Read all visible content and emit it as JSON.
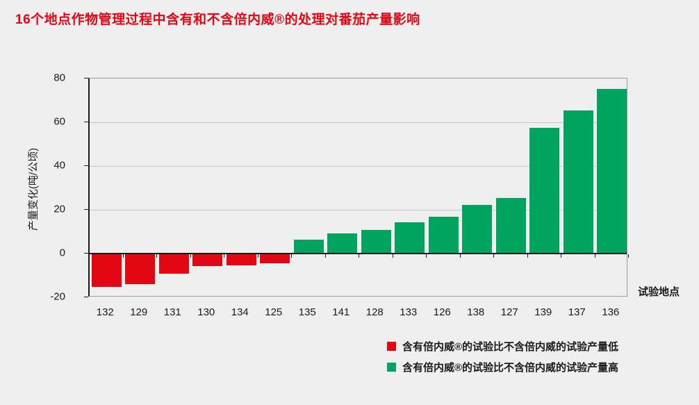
{
  "title": "16个地点作物管理过程中含有和不含倍内威®的处理对番茄产量影响",
  "colors": {
    "title": "#e30613",
    "negative_bar": "#e30613",
    "positive_bar": "#00a45e",
    "axis": "#1a1a1a",
    "gridline": "#c9c9c9",
    "plot_border": "#9a9a9a",
    "background": "#efefef"
  },
  "chart_data": {
    "type": "bar",
    "title": "16个地点作物管理过程中含有和不含倍内威®的处理对番茄产量影响",
    "categories": [
      "132",
      "129",
      "131",
      "130",
      "134",
      "125",
      "135",
      "141",
      "128",
      "133",
      "126",
      "138",
      "127",
      "139",
      "137",
      "136"
    ],
    "values": [
      -15,
      -13.5,
      -9,
      -5.5,
      -5,
      -4,
      6,
      9,
      10.5,
      14,
      16.5,
      22,
      25,
      57,
      65,
      75
    ],
    "xlabel": "试验地点",
    "ylabel": "产量变化(吨/公顷)",
    "ylim": [
      -20,
      80
    ],
    "yticks": [
      80,
      60,
      40,
      20,
      0,
      -20
    ],
    "grid": true,
    "legend_position": "bottom-right",
    "bar_colors_rule": "negative=red, positive=green"
  },
  "legend": {
    "items": [
      {
        "label": "含有倍内威®的试验比不含倍内威的试验产量低",
        "color": "#e30613"
      },
      {
        "label": "含有倍内威®的试验比不含倍内威的试验产量高",
        "color": "#00a45e"
      }
    ]
  }
}
